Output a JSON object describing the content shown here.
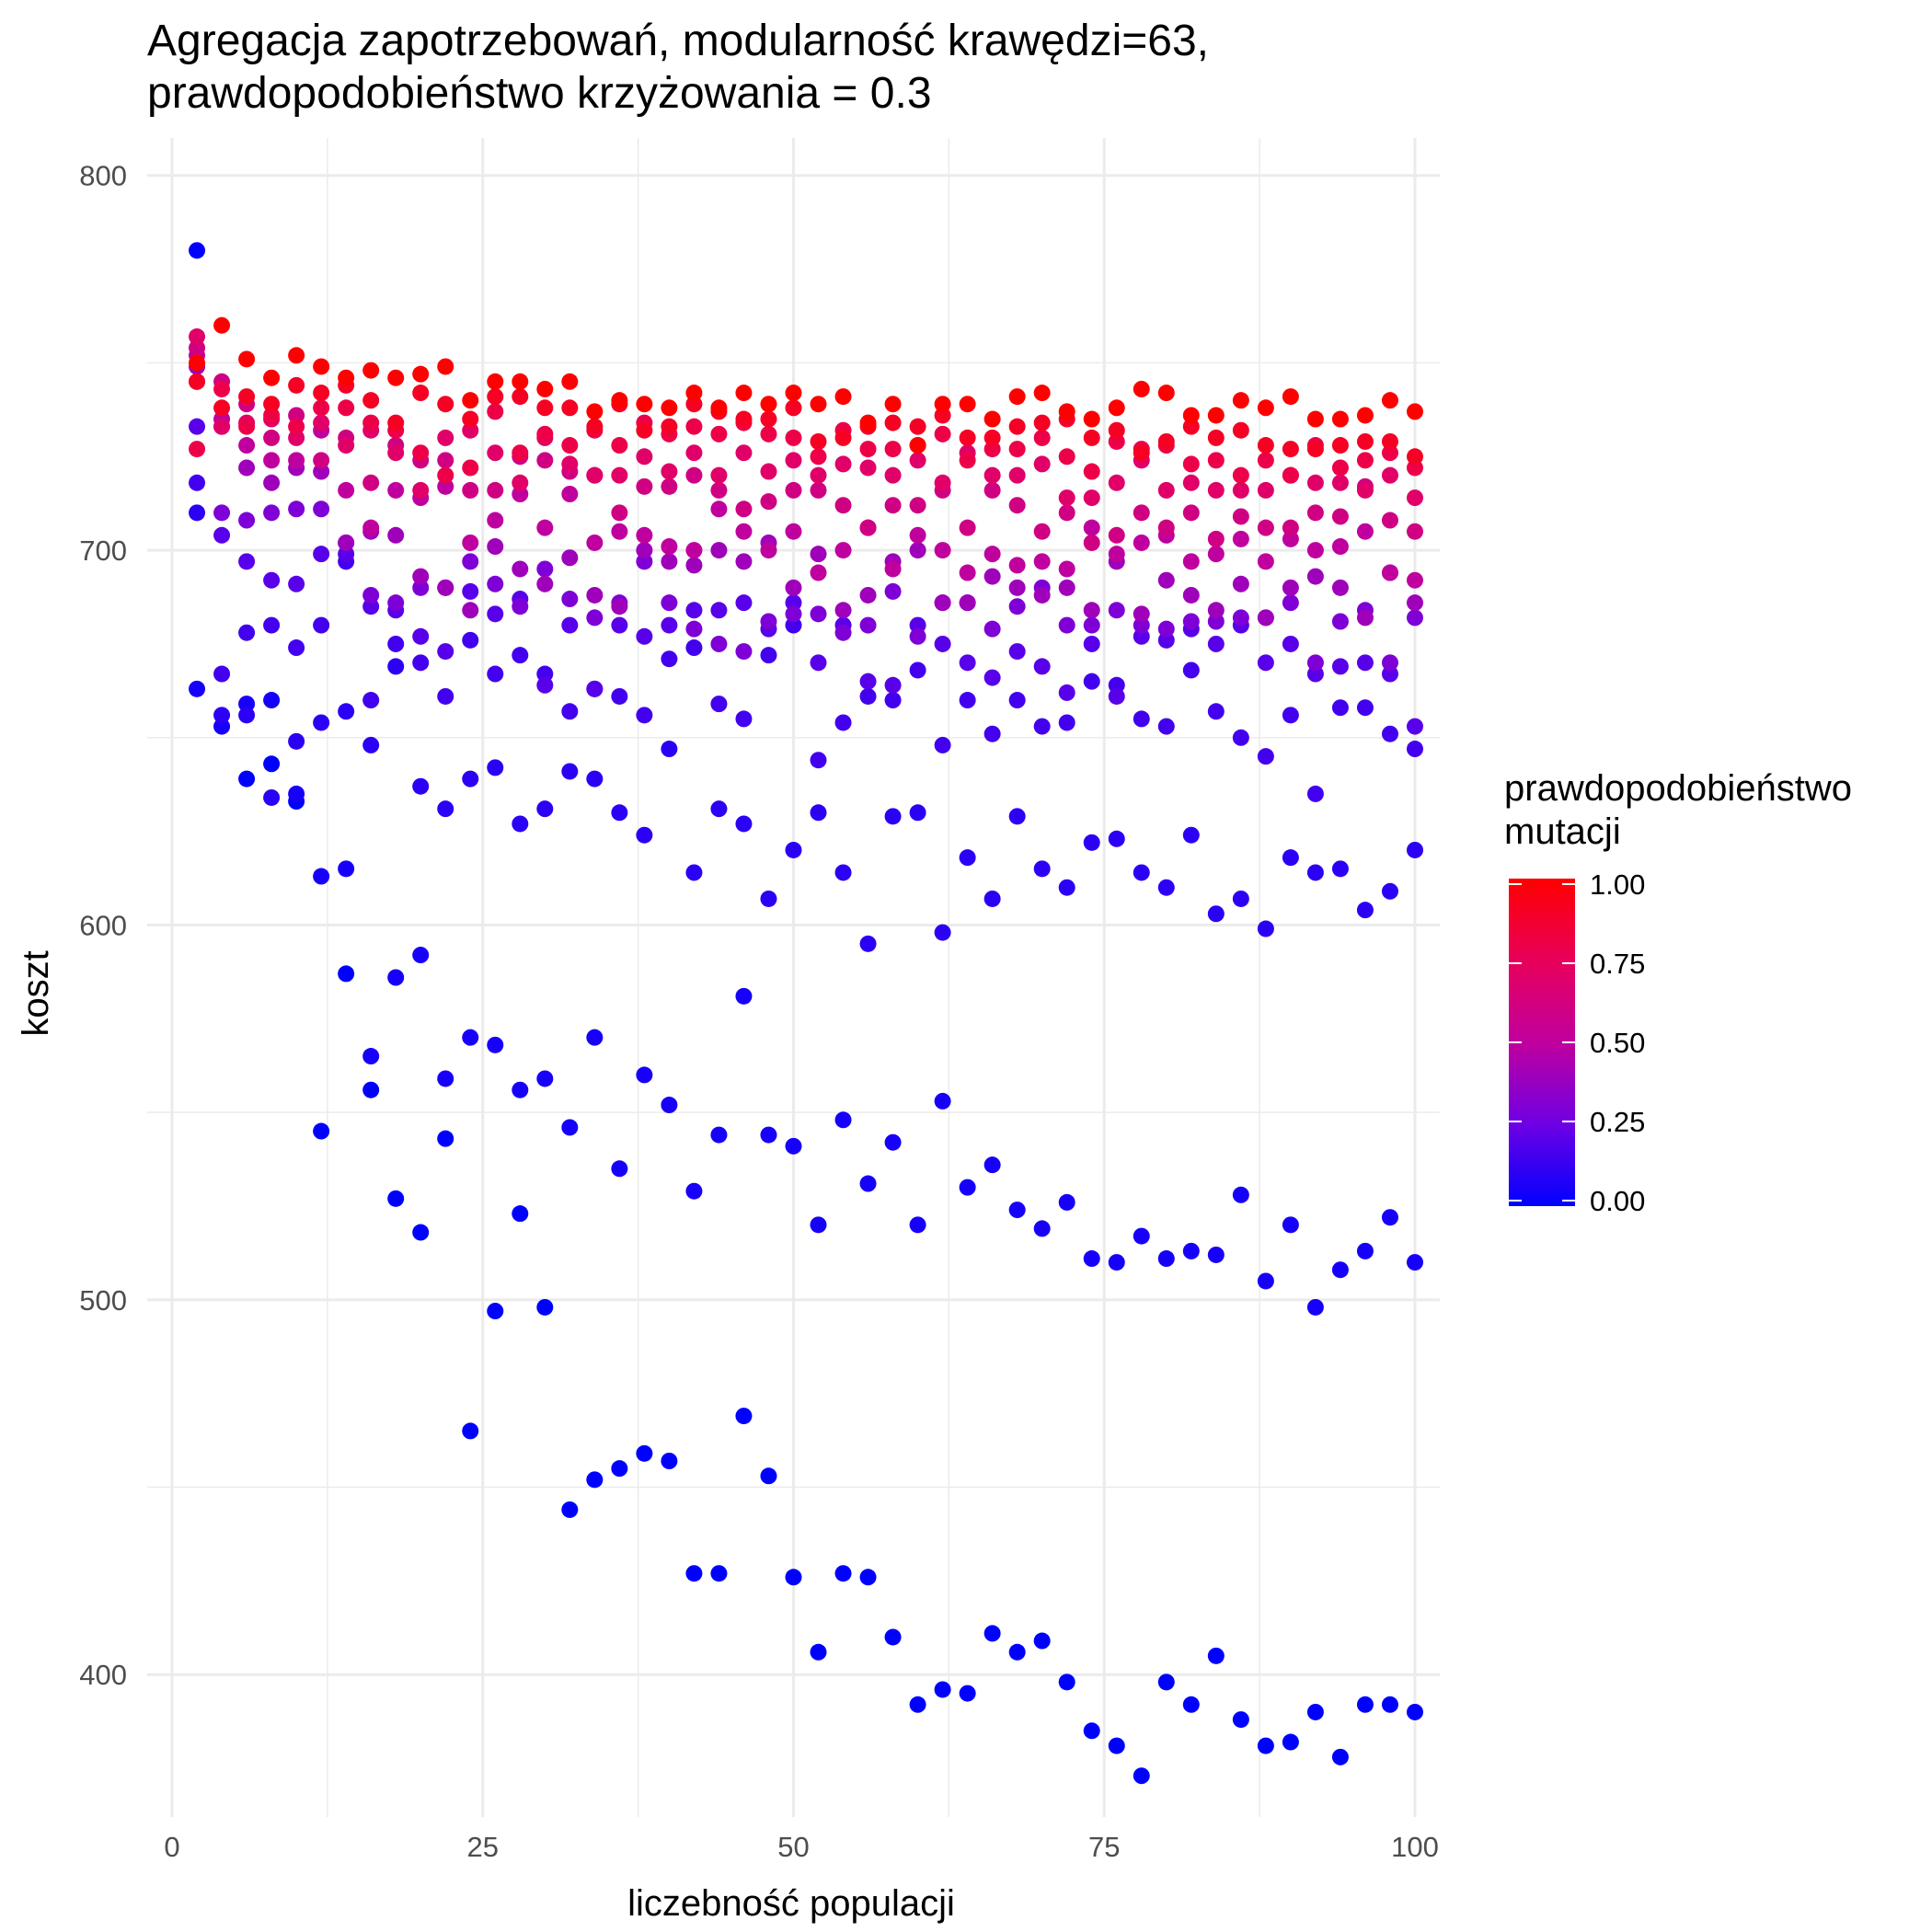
{
  "chart_data": {
    "type": "scatter",
    "title_line1": "Agregacja zapotrzebowań, modularność krawędzi=63,",
    "title_line2": " prawdopodobieństwo krzyżowania = 0.3",
    "xlabel": "liczebność populacji",
    "ylabel": "koszt",
    "xlim": [
      -2,
      102
    ],
    "ylim": [
      362,
      810
    ],
    "x_ticks": [
      0,
      25,
      50,
      75,
      100
    ],
    "x_tick_labels": [
      "0",
      "25",
      "50",
      "75",
      "100"
    ],
    "y_ticks": [
      400,
      500,
      600,
      700,
      800
    ],
    "y_tick_labels": [
      "400",
      "500",
      "600",
      "700",
      "800"
    ],
    "grid": true,
    "legend": {
      "title_line1": "prawdopodobieństwo",
      "title_line2": " mutacji",
      "placement": "right",
      "low_color": "#0000ff",
      "high_color": "#ff0000",
      "ticks": [
        0.0,
        0.25,
        0.5,
        0.75,
        1.0
      ],
      "tick_labels": [
        "0.00",
        "0.25",
        "0.50",
        "0.75",
        "1.00"
      ]
    },
    "x_values": [
      2,
      4,
      6,
      8,
      10,
      12,
      14,
      16,
      18,
      20,
      22,
      24,
      26,
      28,
      30,
      32,
      34,
      36,
      38,
      40,
      42,
      44,
      46,
      48,
      50,
      52,
      54,
      56,
      58,
      60,
      62,
      64,
      66,
      68,
      70,
      72,
      74,
      76,
      78,
      80,
      82,
      84,
      86,
      88,
      90,
      92,
      94,
      96,
      98,
      100
    ],
    "series": [
      {
        "color_value": 0.0,
        "y": [
          780,
          null,
          639,
          643,
          633,
          545,
          587,
          556,
          527,
          518,
          543,
          465,
          497,
          523,
          498,
          444,
          452,
          455,
          459,
          457,
          427,
          427,
          469,
          453,
          426,
          406,
          427,
          426,
          410,
          392,
          396,
          395,
          411,
          406,
          409,
          398,
          385,
          381,
          373,
          398,
          392,
          405,
          388,
          381,
          382,
          390,
          378,
          392,
          392,
          390
        ]
      },
      {
        "color_value": 0.05,
        "y": [
          663,
          653,
          659,
          660,
          635,
          613,
          615,
          565,
          586,
          592,
          559,
          570,
          568,
          556,
          559,
          546,
          570,
          535,
          560,
          552,
          529,
          544,
          581,
          544,
          541,
          520,
          548,
          531,
          542,
          520,
          553,
          530,
          536,
          524,
          519,
          526,
          511,
          510,
          517,
          511,
          513,
          512,
          528,
          505,
          520,
          498,
          508,
          513,
          522,
          510
        ]
      },
      {
        "color_value": 0.1,
        "y": [
          710,
          656,
          656,
          634,
          649,
          654,
          657,
          648,
          669,
          637,
          631,
          639,
          642,
          627,
          631,
          641,
          639,
          630,
          624,
          647,
          614,
          631,
          627,
          607,
          620,
          630,
          614,
          595,
          629,
          630,
          598,
          618,
          607,
          629,
          615,
          610,
          622,
          623,
          614,
          610,
          624,
          603,
          607,
          599,
          618,
          614,
          615,
          604,
          609,
          620
        ]
      },
      {
        "color_value": 0.15,
        "y": [
          718,
          667,
          678,
          680,
          674,
          680,
          697,
          660,
          675,
          670,
          661,
          676,
          667,
          672,
          667,
          657,
          663,
          661,
          656,
          671,
          674,
          659,
          655,
          672,
          680,
          644,
          654,
          661,
          660,
          668,
          648,
          660,
          651,
          660,
          653,
          654,
          665,
          664,
          655,
          653,
          668,
          657,
          650,
          645,
          656,
          635,
          658,
          658,
          651,
          647
        ]
      },
      {
        "color_value": 0.2,
        "y": [
          733,
          704,
          697,
          692,
          691,
          699,
          699,
          685,
          684,
          677,
          673,
          689,
          683,
          687,
          664,
          680,
          663,
          680,
          677,
          680,
          684,
          684,
          686,
          679,
          686,
          670,
          680,
          665,
          664,
          680,
          675,
          670,
          666,
          673,
          669,
          662,
          675,
          661,
          677,
          676,
          679,
          675,
          680,
          670,
          675,
          667,
          669,
          670,
          667,
          653
        ]
      },
      {
        "color_value": 0.3,
        "y": [
          745,
          710,
          708,
          710,
          711,
          711,
          702,
          688,
          686,
          690,
          690,
          697,
          691,
          685,
          695,
          687,
          682,
          686,
          697,
          686,
          679,
          675,
          673,
          681,
          683,
          683,
          678,
          680,
          689,
          677,
          686,
          686,
          679,
          685,
          690,
          680,
          680,
          684,
          680,
          679,
          681,
          681,
          682,
          682,
          686,
          670,
          681,
          684,
          670,
          682
        ]
      },
      {
        "color_value": 0.4,
        "y": [
          749,
          733,
          722,
          718,
          722,
          721,
          702,
          705,
          704,
          693,
          690,
          684,
          701,
          695,
          691,
          698,
          688,
          685,
          700,
          697,
          696,
          700,
          697,
          702,
          690,
          699,
          684,
          688,
          697,
          700,
          686,
          686,
          693,
          690,
          688,
          690,
          684,
          697,
          683,
          692,
          688,
          684,
          691,
          682,
          690,
          693,
          690,
          682,
          694,
          686
        ]
      },
      {
        "color_value": 0.5,
        "y": [
          752,
          735,
          728,
          724,
          724,
          732,
          716,
          706,
          716,
          714,
          717,
          702,
          708,
          715,
          706,
          715,
          702,
          705,
          704,
          701,
          700,
          711,
          705,
          700,
          705,
          694,
          700,
          706,
          695,
          704,
          700,
          694,
          699,
          696,
          697,
          695,
          706,
          699,
          702,
          704,
          697,
          699,
          703,
          697,
          703,
          700,
          701,
          705,
          694,
          692
        ]
      },
      {
        "color_value": 0.6,
        "y": [
          754,
          745,
          739,
          730,
          736,
          724,
          730,
          718,
          728,
          724,
          724,
          716,
          716,
          725,
          724,
          721,
          720,
          710,
          717,
          717,
          720,
          716,
          711,
          713,
          716,
          716,
          712,
          706,
          712,
          712,
          716,
          706,
          716,
          712,
          705,
          710,
          702,
          704,
          710,
          706,
          710,
          703,
          709,
          706,
          706,
          710,
          709,
          717,
          708,
          705
        ]
      },
      {
        "color_value": 0.7,
        "y": [
          757,
          733,
          734,
          735,
          730,
          734,
          728,
          732,
          726,
          716,
          730,
          732,
          726,
          718,
          730,
          723,
          720,
          720,
          725,
          721,
          726,
          720,
          726,
          721,
          724,
          720,
          723,
          722,
          720,
          724,
          718,
          726,
          720,
          720,
          723,
          714,
          714,
          718,
          724,
          716,
          718,
          716,
          716,
          716,
          720,
          718,
          718,
          716,
          720,
          714
        ]
      },
      {
        "color_value": 0.8,
        "y": [
          727,
          743,
          733,
          736,
          733,
          738,
          738,
          734,
          732,
          726,
          720,
          722,
          737,
          726,
          731,
          728,
          732,
          728,
          734,
          731,
          733,
          731,
          734,
          731,
          730,
          725,
          732,
          727,
          727,
          728,
          731,
          724,
          727,
          727,
          730,
          725,
          721,
          729,
          727,
          728,
          723,
          724,
          720,
          724,
          720,
          728,
          722,
          724,
          726,
          722
        ]
      },
      {
        "color_value": 0.9,
        "y": [
          745,
          738,
          741,
          739,
          744,
          742,
          744,
          740,
          734,
          742,
          739,
          735,
          741,
          741,
          738,
          738,
          733,
          739,
          732,
          733,
          739,
          737,
          735,
          735,
          738,
          729,
          730,
          733,
          734,
          733,
          736,
          730,
          730,
          733,
          734,
          735,
          730,
          732,
          726,
          729,
          733,
          730,
          732,
          728,
          727,
          727,
          728,
          729,
          729,
          725
        ]
      },
      {
        "color_value": 1.0,
        "y": [
          750,
          760,
          751,
          746,
          752,
          749,
          746,
          748,
          746,
          747,
          749,
          740,
          745,
          745,
          743,
          745,
          737,
          740,
          739,
          738,
          742,
          738,
          742,
          739,
          742,
          739,
          741,
          734,
          739,
          728,
          739,
          739,
          735,
          741,
          742,
          737,
          735,
          738,
          743,
          742,
          736,
          736,
          740,
          738,
          741,
          735,
          735,
          736,
          740,
          737
        ]
      }
    ]
  }
}
